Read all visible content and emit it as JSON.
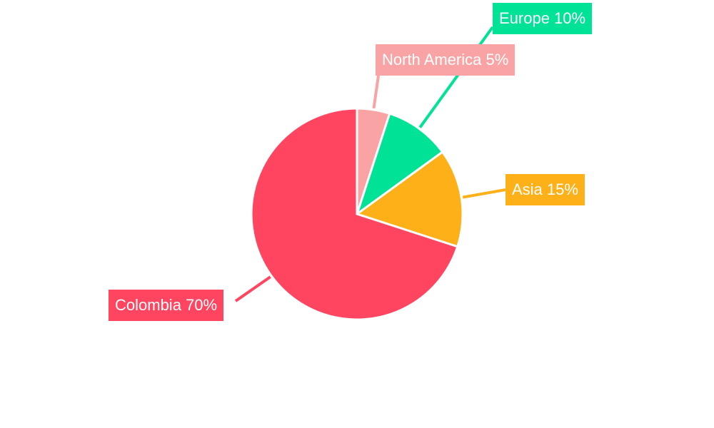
{
  "chart_data": {
    "type": "pie",
    "title": "",
    "start": "top",
    "direction": "clockwise",
    "slices": [
      {
        "label": "North America 5%",
        "name": "North America",
        "value": 5,
        "color": "#f9a3a4"
      },
      {
        "label": "Europe 10%",
        "name": "Europe",
        "value": 10,
        "color": "#00e396"
      },
      {
        "label": "Asia 15%",
        "name": "Asia",
        "value": 15,
        "color": "#feb019"
      },
      {
        "label": "Colombia 70%",
        "name": "Colombia",
        "value": 70,
        "color": "#ff4560"
      }
    ]
  }
}
